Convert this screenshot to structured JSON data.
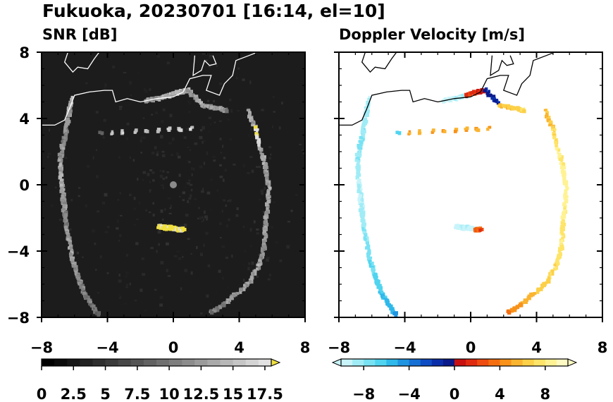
{
  "figure": {
    "title": "Fukuoka, 20230701 [16:14, el=10]"
  },
  "chart_data": [
    {
      "type": "heatmap",
      "title": "SNR [dB]",
      "xlim": [
        -8,
        8
      ],
      "ylim": [
        -8,
        8
      ],
      "xticks": [
        "−8",
        "−4",
        "0",
        "4",
        "8"
      ],
      "yticks": [
        "8",
        "4",
        "0",
        "−4",
        "−8"
      ],
      "background": "#1c1c1c",
      "colorbar": {
        "range": [
          0,
          18
        ],
        "colors": [
          "#000000",
          "#0b0b0b",
          "#161616",
          "#222222",
          "#2e2e2e",
          "#3a3a3a",
          "#474747",
          "#545454",
          "#626262",
          "#707070",
          "#7e7e7e",
          "#8c8c8c",
          "#9b9b9b",
          "#a9a9a9",
          "#b8b8b8",
          "#c6c6c6",
          "#d4d4d4",
          "#e2e2e2"
        ],
        "extend_color": "#f0e040",
        "tick_values": [
          0,
          2.5,
          5,
          7.5,
          10,
          12.5,
          15,
          17.5
        ],
        "tick_labels": [
          "0",
          "2.5",
          "5",
          "7.5",
          "10",
          "12.5",
          "15",
          "17.5"
        ]
      }
    },
    {
      "type": "heatmap",
      "title": "Doppler Velocity [m/s]",
      "xlim": [
        -8,
        8
      ],
      "ylim": [
        -8,
        8
      ],
      "xticks": [
        "−8",
        "−4",
        "0",
        "4",
        "8"
      ],
      "yticks": [],
      "background": "#ffffff",
      "colorbar": {
        "range": [
          -10,
          10
        ],
        "colors": [
          "#c8f4fa",
          "#a0ecf6",
          "#78e2f3",
          "#50d4ef",
          "#2fb8ea",
          "#1f94e0",
          "#1670d4",
          "#0e4cc4",
          "#0a2eaa",
          "#0a1a8a",
          "#c81010",
          "#e02a10",
          "#ee4c10",
          "#f46e10",
          "#f8921a",
          "#fab430",
          "#fcd048",
          "#fee468",
          "#fff294",
          "#fffac4"
        ],
        "tick_values": [
          -8,
          -4,
          0,
          4,
          8
        ],
        "tick_labels": [
          "−8",
          "−4",
          "0",
          "4",
          "8"
        ]
      }
    }
  ],
  "echo_features": [
    {
      "name": "west-arc",
      "points": [
        [
          -6.2,
          5.2
        ],
        [
          -6.3,
          4.4
        ],
        [
          -6.5,
          3.4
        ],
        [
          -6.7,
          2.4
        ],
        [
          -6.9,
          1.4
        ],
        [
          -6.8,
          0.4
        ],
        [
          -6.7,
          -0.6
        ],
        [
          -6.6,
          -1.6
        ],
        [
          -6.5,
          -2.6
        ],
        [
          -6.3,
          -3.6
        ],
        [
          -6.1,
          -4.6
        ],
        [
          -5.8,
          -5.5
        ],
        [
          -5.5,
          -6.3
        ],
        [
          -5.1,
          -7.1
        ],
        [
          -4.6,
          -7.8
        ]
      ],
      "snr": [
        14,
        12,
        11,
        12,
        13,
        13,
        12,
        11,
        12,
        13,
        12,
        11,
        10,
        10,
        9
      ],
      "vel": [
        -9,
        -8.5,
        -8,
        -8,
        -8.5,
        -9,
        -9,
        -8.5,
        -8,
        -7.5,
        -7,
        -6.5,
        -6,
        -5.5,
        -4
      ]
    },
    {
      "name": "east-arc",
      "points": [
        [
          4.5,
          4.5
        ],
        [
          5.0,
          3.4
        ],
        [
          5.3,
          2.2
        ],
        [
          5.6,
          1.0
        ],
        [
          5.8,
          -0.2
        ],
        [
          5.7,
          -1.4
        ],
        [
          5.6,
          -2.6
        ],
        [
          5.5,
          -3.8
        ],
        [
          5.2,
          -4.9
        ],
        [
          4.6,
          -5.9
        ],
        [
          3.8,
          -6.6
        ],
        [
          3.1,
          -7.2
        ],
        [
          2.3,
          -7.7
        ]
      ],
      "snr": [
        13,
        17,
        13,
        12,
        13,
        12,
        13,
        12,
        13,
        12,
        12,
        11,
        10
      ],
      "vel": [
        6,
        7,
        8,
        8.5,
        8.5,
        8,
        8,
        7.5,
        7,
        6.5,
        5.5,
        4.5,
        3
      ]
    },
    {
      "name": "north-coast",
      "points": [
        [
          -1.6,
          5.1
        ],
        [
          -0.9,
          5.2
        ],
        [
          -0.2,
          5.4
        ],
        [
          0.4,
          5.6
        ],
        [
          0.9,
          5.7
        ],
        [
          1.8,
          4.8
        ],
        [
          2.6,
          4.6
        ],
        [
          3.2,
          4.5
        ]
      ],
      "snr": [
        12,
        13,
        14,
        14,
        13,
        12,
        12,
        11
      ],
      "vel": [
        -10,
        -9,
        2,
        1,
        -1,
        6,
        6.5,
        7
      ]
    },
    {
      "name": "south-band",
      "points": [
        [
          -0.9,
          -2.5
        ],
        [
          -0.5,
          -2.6
        ],
        [
          -0.1,
          -2.6
        ],
        [
          0.3,
          -2.7
        ],
        [
          0.6,
          -2.7
        ]
      ],
      "snr": [
        19,
        19,
        19,
        19,
        19
      ],
      "vel": [
        -10,
        -9,
        -10,
        3,
        2
      ]
    },
    {
      "name": "small-echo",
      "points": [
        [
          1.1,
          3.4
        ],
        [
          -4.4,
          3.1
        ]
      ],
      "snr": [
        16,
        8
      ],
      "vel": [
        5,
        -6
      ]
    }
  ],
  "coastline": [
    [
      -8,
      3.6
    ],
    [
      -7.2,
      3.6
    ],
    [
      -6.6,
      3.9
    ],
    [
      -6.3,
      4.6
    ],
    [
      -6.0,
      5.4
    ],
    [
      -5.1,
      5.6
    ],
    [
      -4.2,
      5.7
    ],
    [
      -3.7,
      5.7
    ],
    [
      -3.5,
      5.0
    ],
    [
      -2.8,
      5.2
    ],
    [
      -2.0,
      5.0
    ],
    [
      -1.0,
      5.2
    ],
    [
      0,
      5.3
    ],
    [
      0.6,
      5.6
    ],
    [
      1.0,
      6.4
    ],
    [
      1.8,
      6.6
    ],
    [
      2.3,
      6.6
    ],
    [
      2.0,
      5.7
    ],
    [
      2.8,
      5.4
    ],
    [
      3.1,
      6.1
    ],
    [
      3.6,
      6.6
    ],
    [
      3.8,
      7.5
    ],
    [
      4.6,
      7.8
    ],
    [
      5.1,
      8
    ]
  ],
  "islands": [
    [
      [
        -6.4,
        8
      ],
      [
        -6.6,
        7.4
      ],
      [
        -6.1,
        6.8
      ],
      [
        -5.8,
        7.1
      ],
      [
        -5.2,
        7.0
      ],
      [
        -4.8,
        7.6
      ],
      [
        -4.5,
        8
      ]
    ],
    [
      [
        1.3,
        7.8
      ],
      [
        1.2,
        6.6
      ],
      [
        1.7,
        6.9
      ],
      [
        1.9,
        7.5
      ],
      [
        2.2,
        7.2
      ],
      [
        2.6,
        7.3
      ],
      [
        2.4,
        7.8
      ]
    ]
  ]
}
